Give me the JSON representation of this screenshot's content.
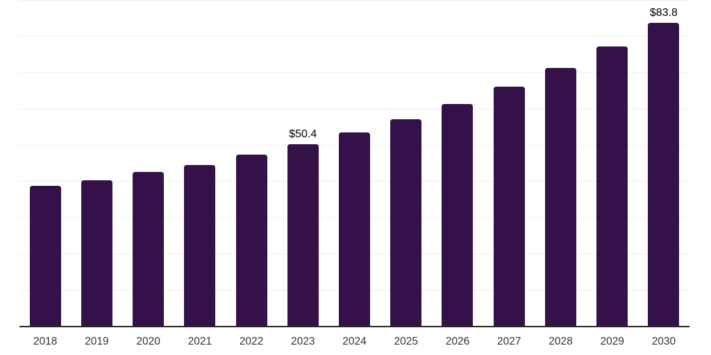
{
  "chart_data": {
    "type": "bar",
    "title": "",
    "xlabel": "",
    "ylabel": "",
    "categories": [
      "2018",
      "2019",
      "2020",
      "2021",
      "2022",
      "2023",
      "2024",
      "2025",
      "2026",
      "2027",
      "2028",
      "2029",
      "2030"
    ],
    "values": [
      38.9,
      40.5,
      42.8,
      44.7,
      47.4,
      50.4,
      53.7,
      57.3,
      61.5,
      66.3,
      71.5,
      77.4,
      83.8
    ],
    "data_labels": {
      "2023": "$50.4",
      "2030": "$83.8"
    },
    "ylim": [
      0,
      90
    ],
    "gridline_step": 10,
    "grid": true,
    "legend": false,
    "y_tick_labels_shown": false,
    "colors": {
      "bar": "#35114a",
      "axis_line": "#262626",
      "gridline": "#f0f0f0",
      "tick_label": "#333333",
      "value_label": "#000000"
    }
  }
}
